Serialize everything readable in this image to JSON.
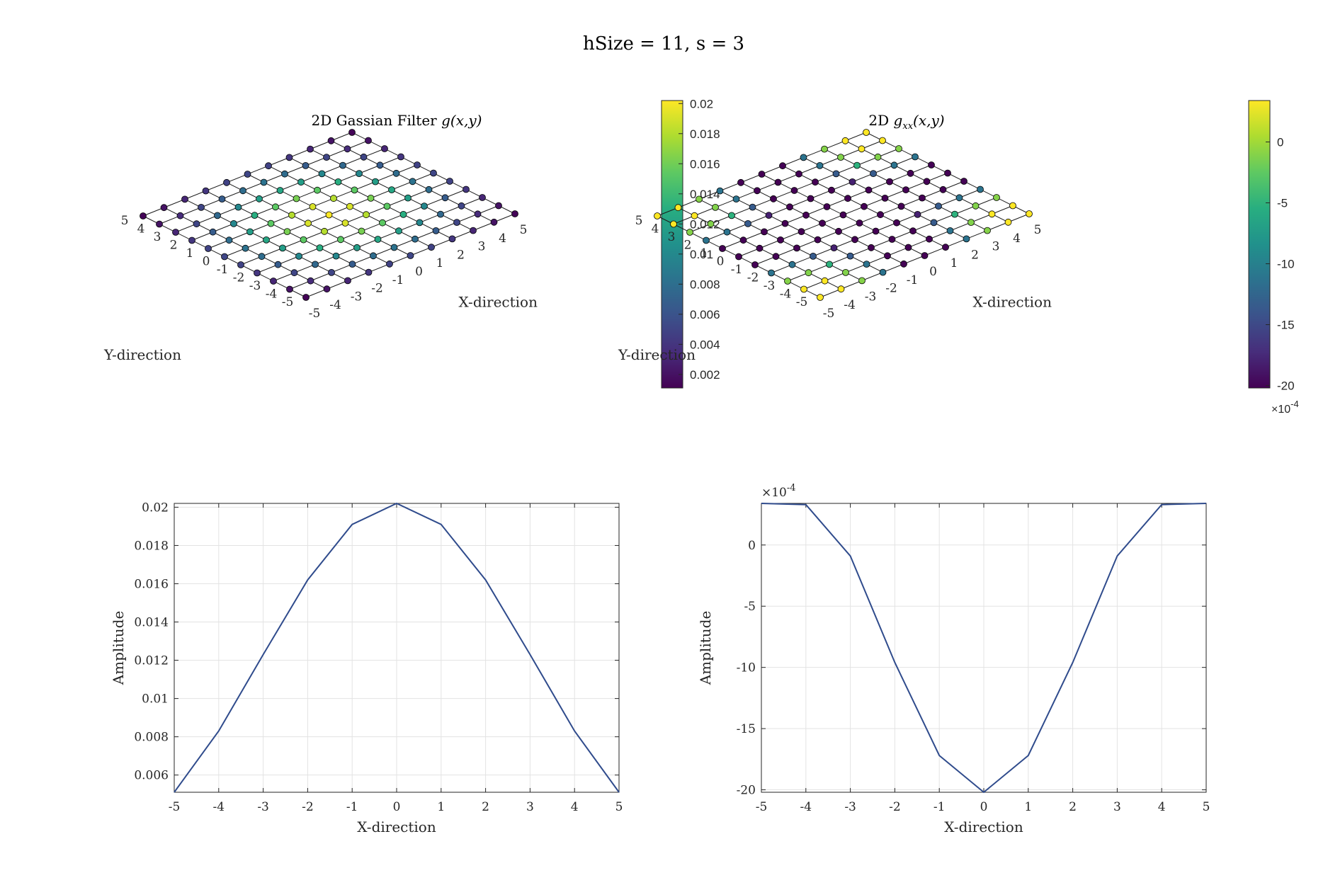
{
  "figure_title": "hSize = 11, s = 3",
  "colormap": [
    "#440154",
    "#472d7b",
    "#3b528b",
    "#2c728e",
    "#21918c",
    "#28ae80",
    "#5ec962",
    "#addc30",
    "#fde725"
  ],
  "line_color": "#2f4b8c",
  "chart_data": [
    {
      "type": "scatter3d",
      "title_prefix": "2D Gassian Filter ",
      "title_math": "g(x,y)",
      "title_math_sub": "",
      "title_math_tail": "",
      "xlabel": "X-direction",
      "ylabel": "Y-direction",
      "x": [
        -5,
        -4,
        -3,
        -2,
        -1,
        0,
        1,
        2,
        3,
        4,
        5
      ],
      "y": [
        -5,
        -4,
        -3,
        -2,
        -1,
        0,
        1,
        2,
        3,
        4,
        5
      ],
      "x_ticks": [
        "-5",
        "-4",
        "-3",
        "-2",
        "-1",
        "0",
        "1",
        "2",
        "3",
        "4",
        "5"
      ],
      "y_ticks": [
        "-5",
        "-4",
        "-3",
        "-2",
        "-1",
        "0",
        "1",
        "2",
        "3",
        "4",
        "5"
      ],
      "profile": [
        0.0051,
        0.0083,
        0.0123,
        0.0162,
        0.0191,
        0.0202,
        0.0191,
        0.0162,
        0.0123,
        0.0083,
        0.0051
      ],
      "z_rule": "product",
      "z_scale": 0.0202,
      "z_offset": 0,
      "clim": [
        0.0011,
        0.0202
      ],
      "colorbar_ticks": [
        "0.002",
        "0.004",
        "0.006",
        "0.008",
        "0.01",
        "0.012",
        "0.014",
        "0.016",
        "0.018",
        "0.02"
      ],
      "colorbar_tick_values": [
        0.002,
        0.004,
        0.006,
        0.008,
        0.01,
        0.012,
        0.014,
        0.016,
        0.018,
        0.02
      ],
      "colorbar_exponent": ""
    },
    {
      "type": "scatter3d",
      "title_prefix": "2D ",
      "title_math": "g",
      "title_math_sub": "xx",
      "title_math_tail": "(x,y)",
      "xlabel": "X-direction",
      "ylabel": "Y-direction",
      "x": [
        -5,
        -4,
        -3,
        -2,
        -1,
        0,
        1,
        2,
        3,
        4,
        5
      ],
      "y": [
        -5,
        -4,
        -3,
        -2,
        -1,
        0,
        1,
        2,
        3,
        4,
        5
      ],
      "x_ticks": [
        "-5",
        "-4",
        "-3",
        "-2",
        "-1",
        "0",
        "1",
        "2",
        "3",
        "4",
        "5"
      ],
      "y_ticks": [
        "-5",
        "-4",
        "-3",
        "-2",
        "-1",
        "0",
        "1",
        "2",
        "3",
        "4",
        "5"
      ],
      "profile": [
        3.4,
        3.3,
        -0.9,
        -9.6,
        -17.2,
        -20.2,
        -17.2,
        -9.6,
        -0.9,
        3.3,
        3.4
      ],
      "z_rule": "offset",
      "z_scale": 20.2,
      "z_offset": 3.4,
      "clim": [
        -20.2,
        3.4
      ],
      "colorbar_ticks": [
        "0",
        "-5",
        "-10",
        "-15",
        "-20"
      ],
      "colorbar_tick_values": [
        0,
        -5,
        -10,
        -15,
        -20
      ],
      "colorbar_exponent": "-4"
    },
    {
      "type": "line",
      "xlabel": "X-direction",
      "ylabel": "Amplitude",
      "x": [
        -5,
        -4,
        -3,
        -2,
        -1,
        0,
        1,
        2,
        3,
        4,
        5
      ],
      "values": [
        0.0051,
        0.0083,
        0.0123,
        0.0162,
        0.0191,
        0.0202,
        0.0191,
        0.0162,
        0.0123,
        0.0083,
        0.0051
      ],
      "xlim": [
        -5,
        5
      ],
      "ylim": [
        0.0051,
        0.0202
      ],
      "x_ticks": [
        "-5",
        "-4",
        "-3",
        "-2",
        "-1",
        "0",
        "1",
        "2",
        "3",
        "4",
        "5"
      ],
      "x_tick_values": [
        -5,
        -4,
        -3,
        -2,
        -1,
        0,
        1,
        2,
        3,
        4,
        5
      ],
      "y_ticks": [
        "0.006",
        "0.008",
        "0.01",
        "0.012",
        "0.014",
        "0.016",
        "0.018",
        "0.02"
      ],
      "y_tick_values": [
        0.006,
        0.008,
        0.01,
        0.012,
        0.014,
        0.016,
        0.018,
        0.02
      ],
      "y_exponent": "",
      "grid": true
    },
    {
      "type": "line",
      "xlabel": "X-direction",
      "ylabel": "Amplitude",
      "x": [
        -5,
        -4,
        -3,
        -2,
        -1,
        0,
        1,
        2,
        3,
        4,
        5
      ],
      "values": [
        3.4,
        3.3,
        -0.9,
        -9.6,
        -17.2,
        -20.2,
        -17.2,
        -9.6,
        -0.9,
        3.3,
        3.4
      ],
      "xlim": [
        -5,
        5
      ],
      "ylim": [
        -20.2,
        3.4
      ],
      "x_ticks": [
        "-5",
        "-4",
        "-3",
        "-2",
        "-1",
        "0",
        "1",
        "2",
        "3",
        "4",
        "5"
      ],
      "x_tick_values": [
        -5,
        -4,
        -3,
        -2,
        -1,
        0,
        1,
        2,
        3,
        4,
        5
      ],
      "y_ticks": [
        "0",
        "-5",
        "-10",
        "-15",
        "-20"
      ],
      "y_tick_values": [
        0,
        -5,
        -10,
        -15,
        -20
      ],
      "y_exponent": "-4",
      "grid": true
    }
  ]
}
